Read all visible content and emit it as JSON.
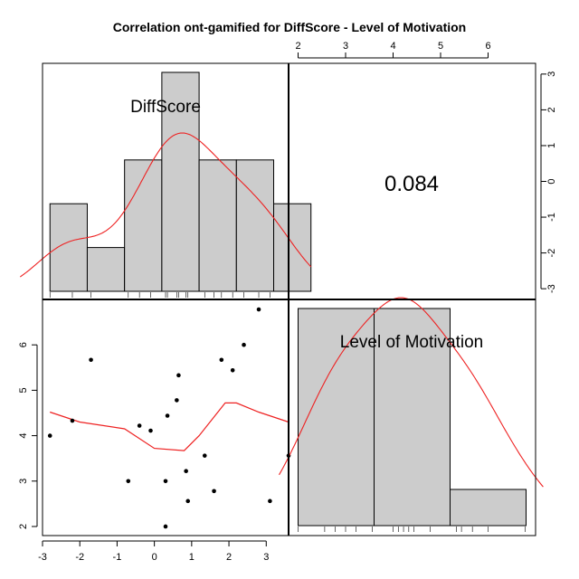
{
  "chart_data": {
    "type": "pairs",
    "title": "Correlation ont-gamified for DiffScore - Level of Motivation",
    "variables": [
      "DiffScore",
      "Level of Motivation"
    ],
    "correlation_text": "0.084",
    "diffscore_axis": {
      "range": [
        -3,
        3.6
      ],
      "ticks": [
        "-3",
        "-2",
        "-1",
        "0",
        "1",
        "2",
        "3"
      ]
    },
    "motivation_axis": {
      "range": [
        1.8,
        7
      ],
      "ticks": [
        "2",
        "3",
        "4",
        "5",
        "6"
      ]
    },
    "diffscore_histogram": {
      "bins": [
        [
          -2.8,
          -1.8
        ],
        [
          -1.8,
          -0.8
        ],
        [
          -0.8,
          0.2
        ],
        [
          0.2,
          1.2
        ],
        [
          1.2,
          2.2
        ],
        [
          2.2,
          3.2
        ],
        [
          3.2,
          4.2
        ]
      ],
      "counts": [
        2,
        1,
        3,
        5,
        3,
        3,
        2
      ]
    },
    "motivation_histogram": {
      "bins": [
        [
          2,
          3.6
        ],
        [
          3.6,
          5.2
        ],
        [
          5.2,
          6.8
        ]
      ],
      "counts": [
        6,
        6,
        1
      ]
    },
    "scatter_points": [
      {
        "x": -2.8,
        "y": 4.0
      },
      {
        "x": -2.2,
        "y": 4.33
      },
      {
        "x": -1.7,
        "y": 5.67
      },
      {
        "x": -0.7,
        "y": 3.0
      },
      {
        "x": -0.4,
        "y": 4.22
      },
      {
        "x": -0.1,
        "y": 4.11
      },
      {
        "x": 0.3,
        "y": 3.0
      },
      {
        "x": 0.3,
        "y": 2.0
      },
      {
        "x": 0.35,
        "y": 4.44
      },
      {
        "x": 0.6,
        "y": 4.78
      },
      {
        "x": 0.65,
        "y": 5.33
      },
      {
        "x": 0.85,
        "y": 3.22
      },
      {
        "x": 0.9,
        "y": 2.56
      },
      {
        "x": 1.35,
        "y": 3.56
      },
      {
        "x": 1.6,
        "y": 2.78
      },
      {
        "x": 1.8,
        "y": 5.67
      },
      {
        "x": 2.1,
        "y": 5.44
      },
      {
        "x": 2.4,
        "y": 6.0
      },
      {
        "x": 2.8,
        "y": 6.78
      },
      {
        "x": 3.1,
        "y": 2.56
      },
      {
        "x": 3.6,
        "y": 3.56
      }
    ],
    "scatter_smooth": [
      {
        "x": -2.8,
        "y": 4.52
      },
      {
        "x": -2.0,
        "y": 4.3
      },
      {
        "x": -0.8,
        "y": 4.15
      },
      {
        "x": 0.0,
        "y": 3.72
      },
      {
        "x": 0.8,
        "y": 3.67
      },
      {
        "x": 1.2,
        "y": 4.0
      },
      {
        "x": 1.9,
        "y": 4.72
      },
      {
        "x": 2.2,
        "y": 4.72
      },
      {
        "x": 2.8,
        "y": 4.52
      },
      {
        "x": 3.6,
        "y": 4.3
      }
    ],
    "diffscore_rug": [
      -2.8,
      -2.2,
      -1.7,
      -0.7,
      -0.4,
      -0.1,
      0.3,
      0.35,
      0.6,
      0.65,
      0.85,
      0.9,
      1.35,
      1.6,
      1.8,
      2.1,
      2.4,
      2.8,
      3.1,
      3.6
    ],
    "motivation_rug": [
      2.0,
      2.56,
      2.78,
      3.0,
      3.22,
      3.56,
      4.0,
      4.11,
      4.22,
      4.33,
      4.44,
      4.78,
      5.33,
      5.44,
      5.67,
      6.0,
      6.78
    ],
    "colors": {
      "bar_fill": "#cccccc",
      "curve": "#ee2222",
      "frame": "#000000"
    }
  }
}
